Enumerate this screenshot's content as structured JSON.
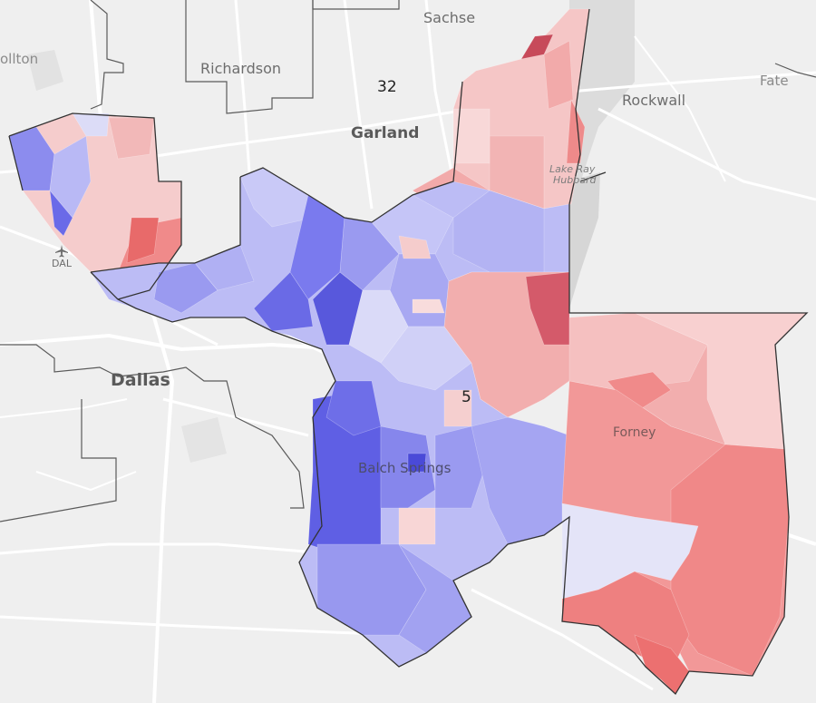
{
  "map": {
    "cities": {
      "sachse": "Sachse",
      "richardson": "Richardson",
      "rockwall": "Rockwall",
      "fate": "Fate",
      "carrollton": "ollton",
      "garland": "Garland",
      "dallas": "Dallas",
      "balch_springs": "Balch Springs",
      "forney": "Forney"
    },
    "airport": {
      "code": "DAL",
      "icon": "airplane-icon"
    },
    "lake": {
      "line1": "Lake Ray",
      "line2": "Hubbard"
    },
    "districts": {
      "d32": "32",
      "d5": "5"
    },
    "colors": {
      "background": "#efefef",
      "roads": "#ffffff",
      "water": "#dcdcdc",
      "boundary": "#3a3a3a",
      "strong_dem": "#5a5ae8",
      "lean_dem": "#b8b8f5",
      "strong_rep": "#e86a6a",
      "lean_rep": "#f5c6c6"
    }
  }
}
